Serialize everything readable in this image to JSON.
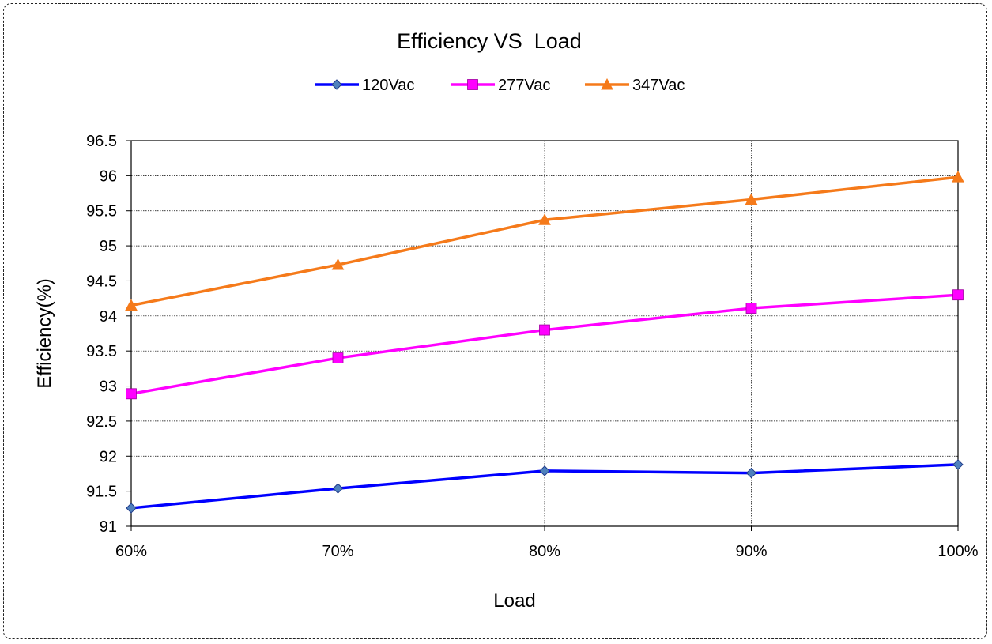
{
  "chart_data": {
    "type": "line",
    "title": "Efficiency VS  Load",
    "xlabel": "Load",
    "ylabel": "Efficiency(%)",
    "categories": [
      "60%",
      "70%",
      "80%",
      "90%",
      "100%"
    ],
    "ylim": [
      91,
      96.5
    ],
    "yticks": [
      "91",
      "91.5",
      "92",
      "92.5",
      "93",
      "93.5",
      "94",
      "94.5",
      "95",
      "95.5",
      "96",
      "96.5"
    ],
    "grid": true,
    "legend_position": "top",
    "series": [
      {
        "name": "120Vac",
        "values": [
          91.26,
          91.54,
          91.79,
          91.76,
          91.88
        ],
        "color": "#0000FF",
        "marker": "diamond",
        "marker_fill": "#4F81BD"
      },
      {
        "name": "277Vac",
        "values": [
          92.89,
          93.4,
          93.8,
          94.11,
          94.3
        ],
        "color": "#FF00FF",
        "marker": "square",
        "marker_fill": "#FF00FF"
      },
      {
        "name": "347Vac",
        "values": [
          94.15,
          94.73,
          95.37,
          95.66,
          95.98
        ],
        "color": "#F57A1A",
        "marker": "triangle",
        "marker_fill": "#F57A1A"
      }
    ]
  }
}
